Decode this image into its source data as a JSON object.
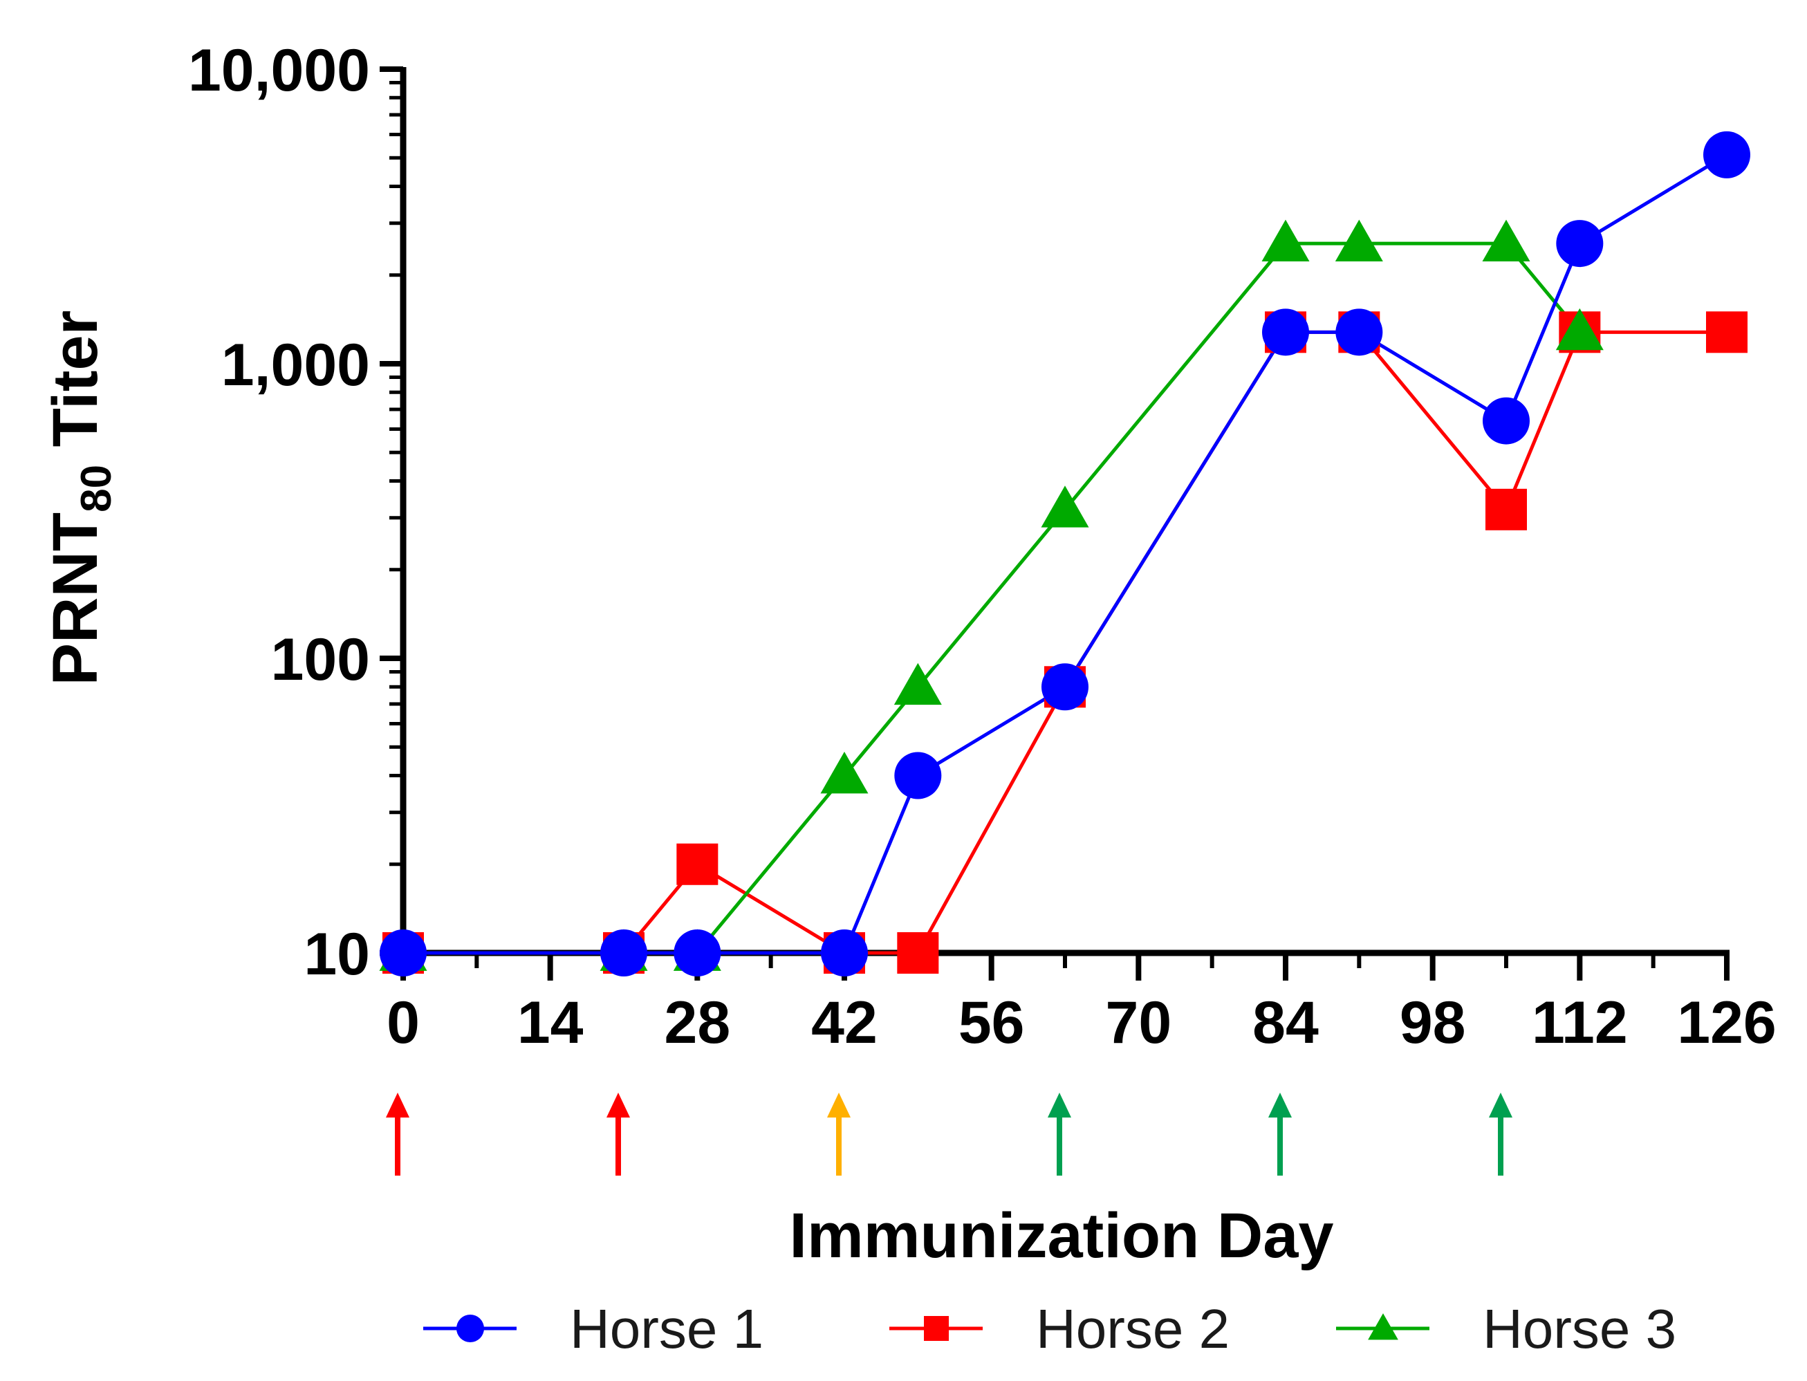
{
  "chart_data": {
    "type": "line",
    "title": "",
    "xlabel": "Immunization Day",
    "ylabel_main": "PRNT",
    "ylabel_sub": "80",
    "ylabel_suffix": " Titer",
    "yscale": "log",
    "ylim": [
      10,
      10000
    ],
    "xlim": [
      0,
      126
    ],
    "x_ticks": [
      0,
      14,
      28,
      42,
      56,
      70,
      84,
      98,
      112,
      126
    ],
    "x_tick_labels": [
      "0",
      "14",
      "28",
      "42",
      "56",
      "70",
      "84",
      "98",
      "112",
      "126"
    ],
    "y_ticks": [
      10,
      100,
      1000,
      10000
    ],
    "y_tick_labels": [
      "10",
      "100",
      "1,000",
      "10,000"
    ],
    "series": [
      {
        "name": "Horse 1",
        "color": "#0000ff",
        "marker": "circle",
        "x": [
          0,
          21,
          28,
          42,
          49,
          63,
          84,
          91,
          105,
          112,
          126
        ],
        "values": [
          10,
          10,
          10,
          10,
          40,
          80,
          1280,
          1280,
          640,
          2560,
          5120
        ]
      },
      {
        "name": "Horse 2",
        "color": "#ff0000",
        "marker": "square",
        "x": [
          0,
          21,
          28,
          42,
          49,
          63,
          84,
          91,
          105,
          112,
          126
        ],
        "values": [
          10,
          10,
          20,
          10,
          10,
          80,
          1280,
          1280,
          320,
          1280,
          1280
        ]
      },
      {
        "name": "Horse 3",
        "color": "#00aa00",
        "marker": "triangle",
        "x": [
          0,
          21,
          28,
          42,
          49,
          63,
          84,
          91,
          105,
          112
        ],
        "values": [
          10,
          10,
          10,
          40,
          80,
          320,
          2560,
          2560,
          2560,
          1280
        ]
      }
    ],
    "immunization_arrows": [
      {
        "day": 0,
        "color": "#ff0000"
      },
      {
        "day": 21,
        "color": "#ff0000"
      },
      {
        "day": 42,
        "color": "#ffb000"
      },
      {
        "day": 63,
        "color": "#00a050"
      },
      {
        "day": 84,
        "color": "#00a050"
      },
      {
        "day": 105,
        "color": "#00a050"
      }
    ],
    "legend_position": "bottom"
  }
}
